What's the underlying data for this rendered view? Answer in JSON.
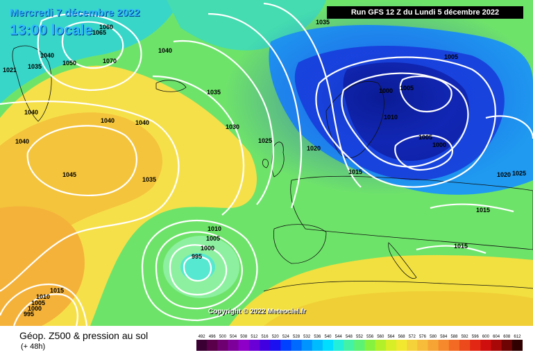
{
  "header": {
    "run_info": "Run GFS 12 Z du Lundi 5 décembre 2022",
    "date": "Mercredi 7 décembre 2022",
    "time": "13:00 locale"
  },
  "map": {
    "copyright": "Copyright © 2022 Meteociel.fr",
    "pressure_labels": [
      "1035",
      "1060",
      "1065",
      "1040",
      "1070",
      "1040",
      "1021",
      "1035",
      "1050",
      "1035",
      "1040",
      "1040",
      "1040",
      "1030",
      "1025",
      "1040",
      "1045",
      "1035",
      "1020",
      "1015",
      "1005",
      "1000",
      "1005",
      "1010",
      "1005",
      "1000",
      "1020",
      "1025",
      "1015",
      "1015",
      "1010",
      "1005",
      "1000",
      "995",
      "1015",
      "1010",
      "1005",
      "1000",
      "995"
    ]
  },
  "footer": {
    "title": "Géop. Z500 & pression au sol",
    "subtitle": "(+ 48h)"
  },
  "scale": {
    "labels": [
      "492",
      "496",
      "500",
      "504",
      "508",
      "512",
      "516",
      "520",
      "524",
      "528",
      "532",
      "536",
      "540",
      "544",
      "548",
      "552",
      "556",
      "560",
      "564",
      "568",
      "572",
      "576",
      "580",
      "584",
      "588",
      "592",
      "596",
      "600",
      "604",
      "608",
      "612"
    ],
    "colors": [
      "#3b0033",
      "#5a004a",
      "#6e0070",
      "#7d009a",
      "#8e00c7",
      "#6a00d6",
      "#4000e0",
      "#1a10f0",
      "#0040ff",
      "#006aff",
      "#0094ff",
      "#00bcff",
      "#00ddff",
      "#22eeda",
      "#44f2a6",
      "#5cf274",
      "#86f240",
      "#b2f02a",
      "#d8ee26",
      "#f2e830",
      "#f6d23a",
      "#f6bc3a",
      "#f6a434",
      "#f5892c",
      "#f26a24",
      "#ec4a1c",
      "#e22814",
      "#cf0e0e",
      "#a80808",
      "#6e0404",
      "#300000"
    ]
  }
}
